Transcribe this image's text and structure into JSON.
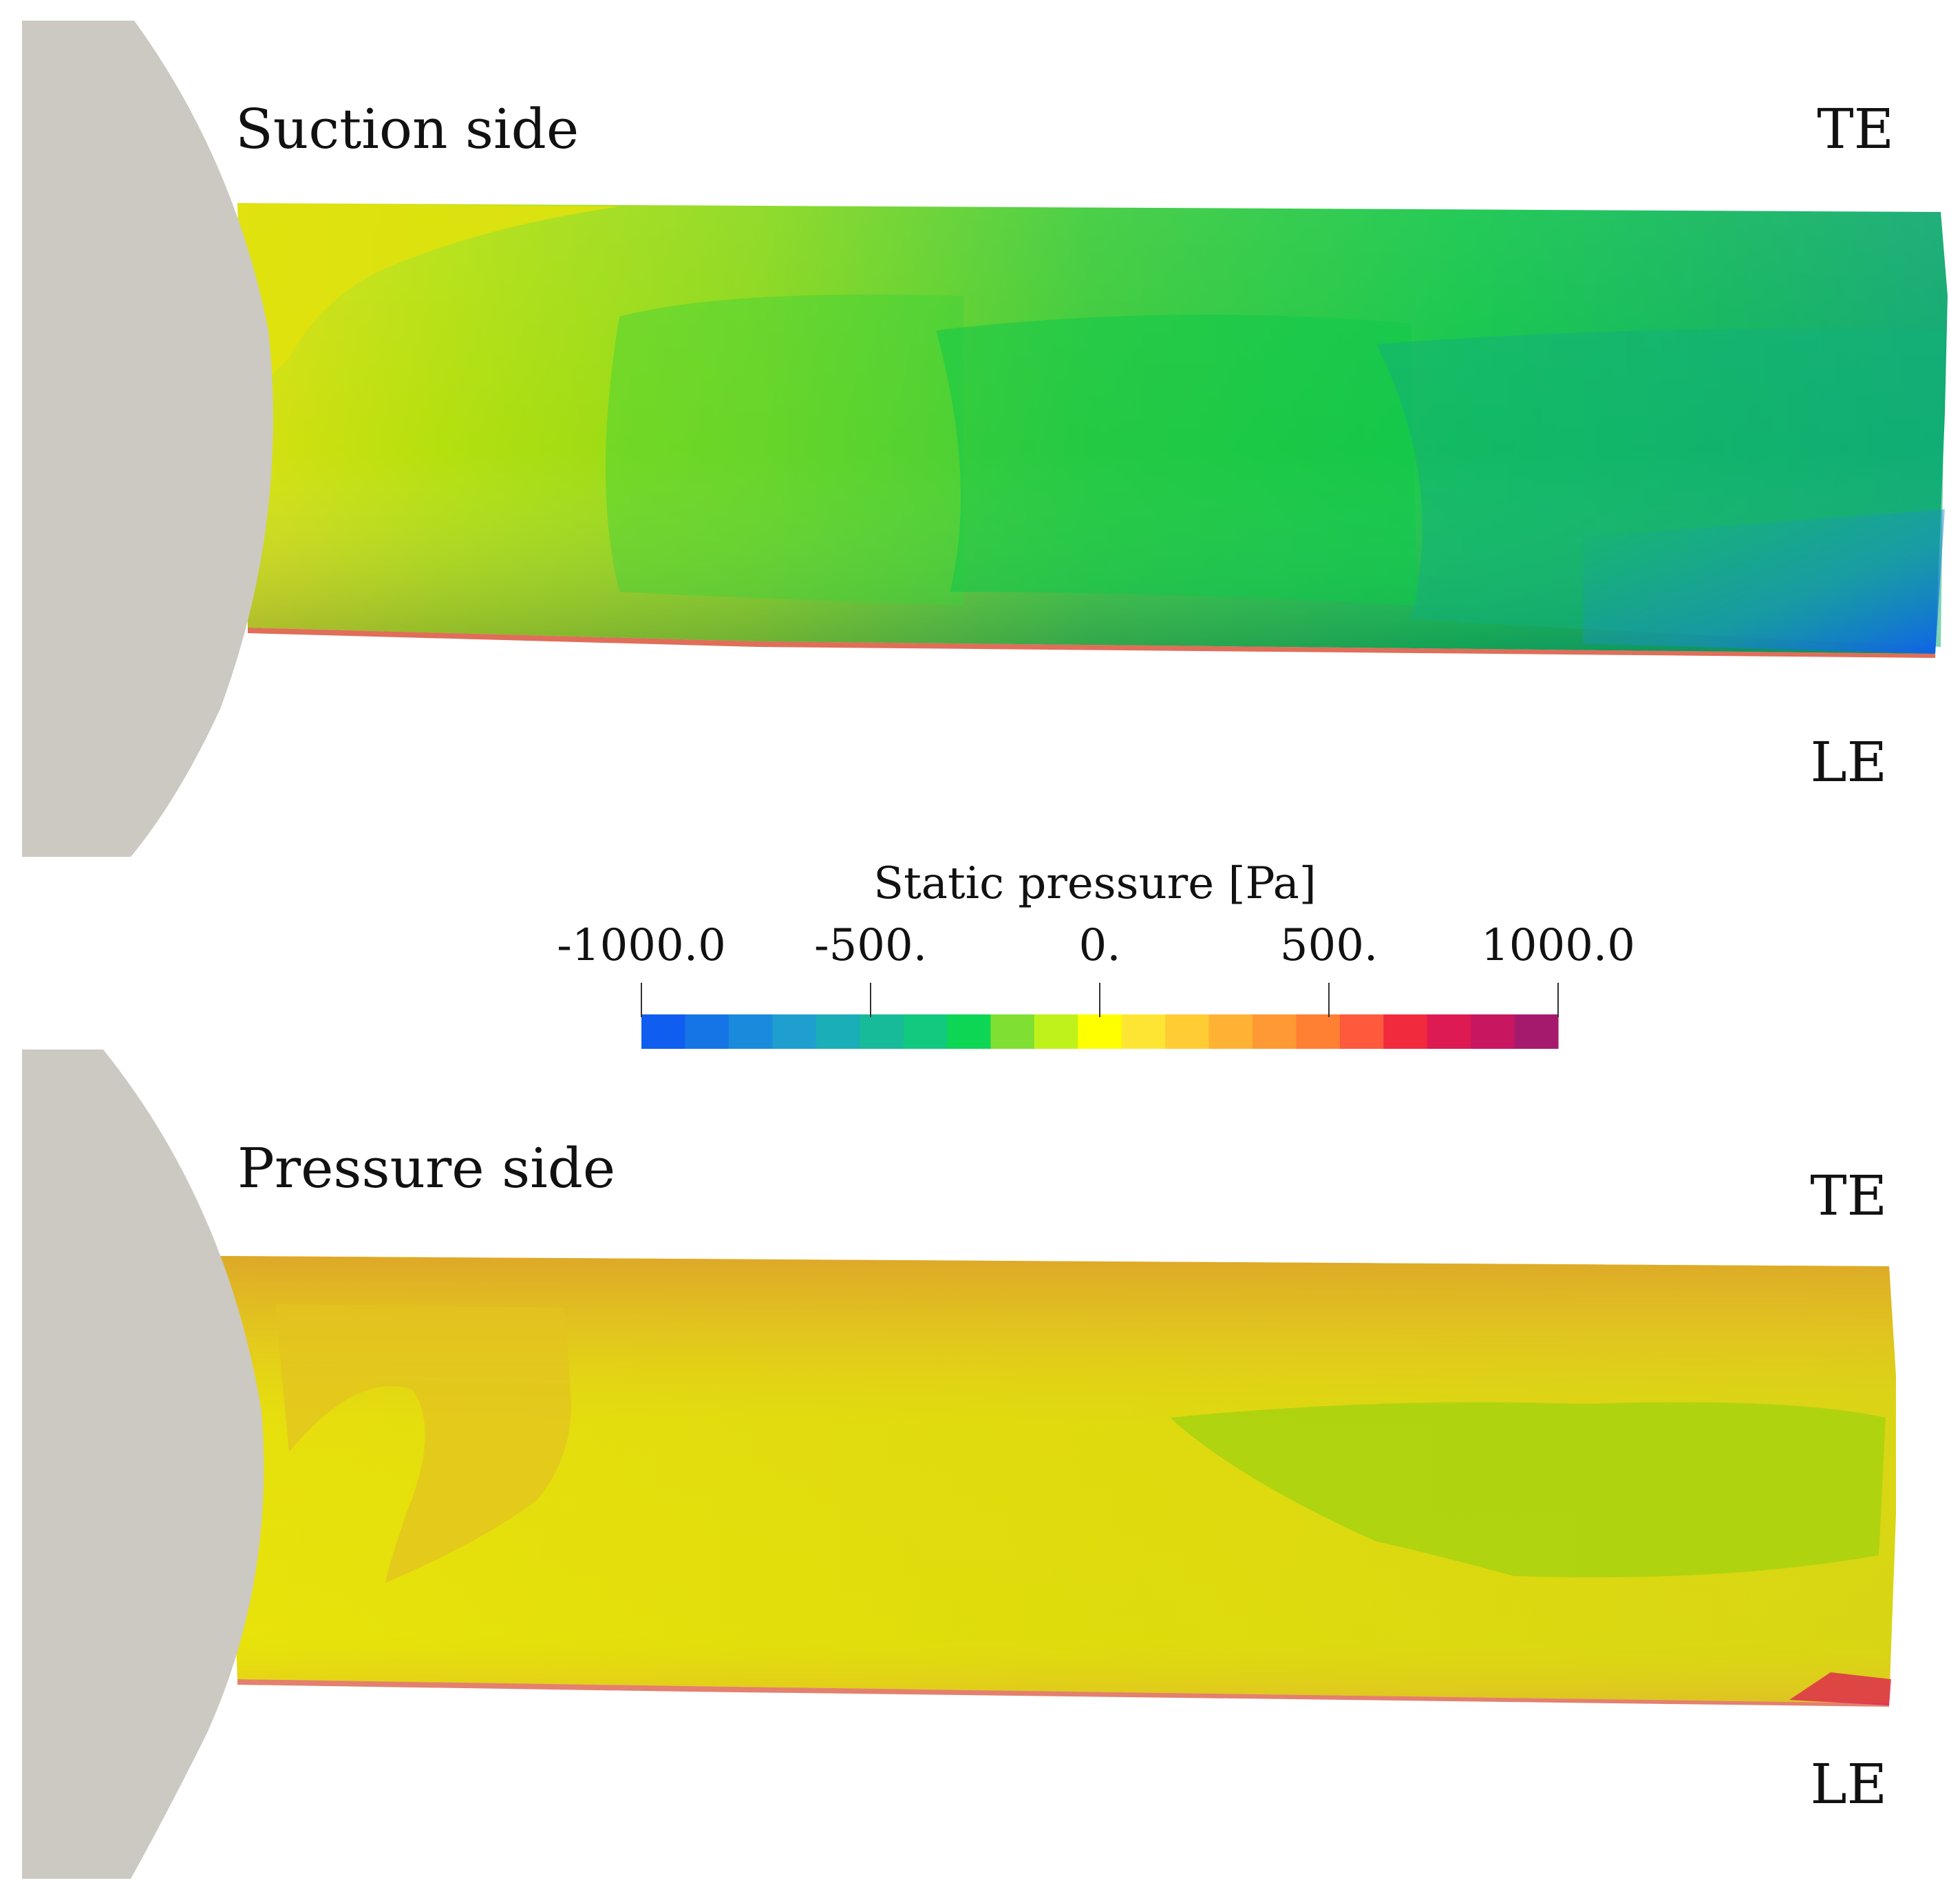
{
  "panels": {
    "suction": {
      "title": "Suction side",
      "te_label": "TE",
      "le_label": "LE"
    },
    "pressure": {
      "title": "Pressure side",
      "te_label": "TE",
      "le_label": "LE"
    }
  },
  "colorbar": {
    "title": "Static pressure [Pa]",
    "range": [
      -1000,
      1000
    ],
    "tick_values": [
      -1000,
      -500,
      0,
      500,
      1000
    ],
    "tick_labels": [
      "-1000.0",
      "-500.",
      "0.",
      "500.",
      "1000.0"
    ],
    "colors": [
      "#0f5ef0",
      "#1675e6",
      "#1a8bdc",
      "#1f9fd0",
      "#1aaeb8",
      "#17bb9a",
      "#11c97f",
      "#0dd655",
      "#7fe033",
      "#bff21a",
      "#ffff00",
      "#ffe533",
      "#ffcc33",
      "#ffb233",
      "#ff9933",
      "#ff7f33",
      "#ff5a3c",
      "#f22a3d",
      "#dd1a52",
      "#c91660",
      "#a61a6e"
    ]
  },
  "colors": {
    "hub": "#ccc9c2",
    "background": "#ffffff"
  }
}
